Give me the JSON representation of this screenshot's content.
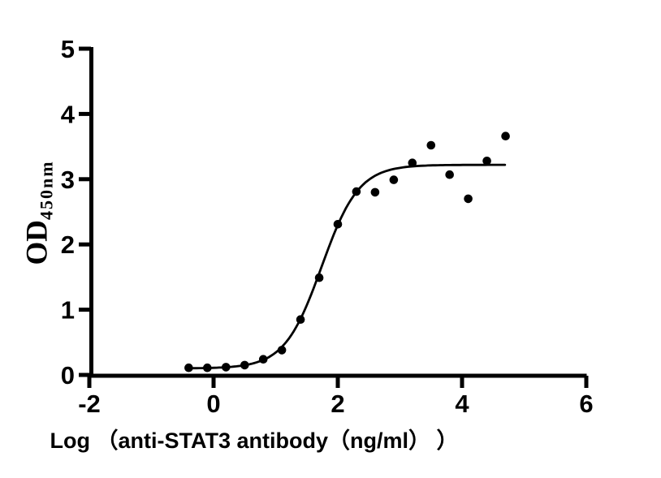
{
  "figure": {
    "background": "#ffffff",
    "foreground": "#000000"
  },
  "chart_data": {
    "type": "scatter",
    "title": "",
    "xlabel": "Log （anti-STAT3 antibody（ng/ml） ）",
    "ylabel_base": "OD",
    "ylabel_sub": "450nm",
    "xlim": [
      -2,
      6
    ],
    "ylim": [
      0,
      5
    ],
    "x_ticks": [
      "-2",
      "0",
      "2",
      "4",
      "6"
    ],
    "x_tick_values": [
      -2,
      0,
      2,
      4,
      6
    ],
    "y_ticks": [
      "0",
      "1",
      "2",
      "3",
      "4",
      "5"
    ],
    "y_tick_values": [
      0,
      1,
      2,
      3,
      4,
      5
    ],
    "grid": false,
    "legend": "none",
    "marker": {
      "shape": "circle",
      "color": "#000000",
      "radius_px": 5.3
    },
    "points": {
      "x": [
        -0.4,
        -0.1,
        0.2,
        0.5,
        0.8,
        1.1,
        1.4,
        1.7,
        2.0,
        2.3,
        2.6,
        2.9,
        3.2,
        3.5,
        3.8,
        4.1,
        4.4,
        4.7
      ],
      "y": [
        0.11,
        0.11,
        0.12,
        0.15,
        0.24,
        0.38,
        0.85,
        1.49,
        2.31,
        2.81,
        2.8,
        2.99,
        3.25,
        3.52,
        3.07,
        2.7,
        3.28,
        3.66
      ]
    },
    "fit_curve": {
      "model": "4PL-sigmoid",
      "bottom": 0.1,
      "top": 3.22,
      "log_ec50": 1.74,
      "hill": 1.45,
      "x_start": -0.43,
      "x_end": 4.72
    }
  }
}
